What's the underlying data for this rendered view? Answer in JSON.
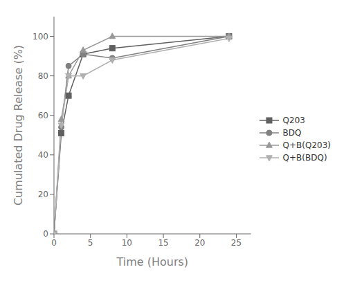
{
  "chart_data": {
    "type": "line",
    "xlabel": "Time (Hours)",
    "ylabel": "Cumulated Drug Release (%)",
    "xlim": [
      0,
      27
    ],
    "ylim": [
      0,
      110
    ],
    "xticks": [
      0,
      5,
      10,
      15,
      20,
      25
    ],
    "yticks": [
      0,
      20,
      40,
      60,
      80,
      100
    ],
    "grid": false,
    "legend": "center right",
    "series": [
      {
        "name": "Q203",
        "color": "#606060",
        "marker": "square",
        "line_style": "solid",
        "x": [
          0,
          1,
          2,
          4,
          8,
          24
        ],
        "values": [
          0,
          51,
          70,
          91,
          94,
          100
        ]
      },
      {
        "name": "BDQ",
        "color": "#808080",
        "marker": "circle",
        "line_style": "solid",
        "x": [
          0,
          1,
          2,
          4,
          8,
          24
        ],
        "values": [
          0,
          54,
          85,
          91,
          89,
          100
        ]
      },
      {
        "name": "Q+B(Q203)",
        "color": "#989898",
        "marker": "triangle-up",
        "line_style": "solid",
        "x": [
          0,
          1,
          2,
          4,
          8,
          24
        ],
        "values": [
          0,
          58,
          80,
          93,
          100,
          100
        ]
      },
      {
        "name": "Q+B(BDQ)",
        "color": "#b0b0b0",
        "marker": "triangle-down",
        "line_style": "solid",
        "x": [
          0,
          1,
          2,
          4,
          8,
          24
        ],
        "values": [
          0,
          55,
          80,
          80,
          88,
          99
        ]
      }
    ]
  }
}
